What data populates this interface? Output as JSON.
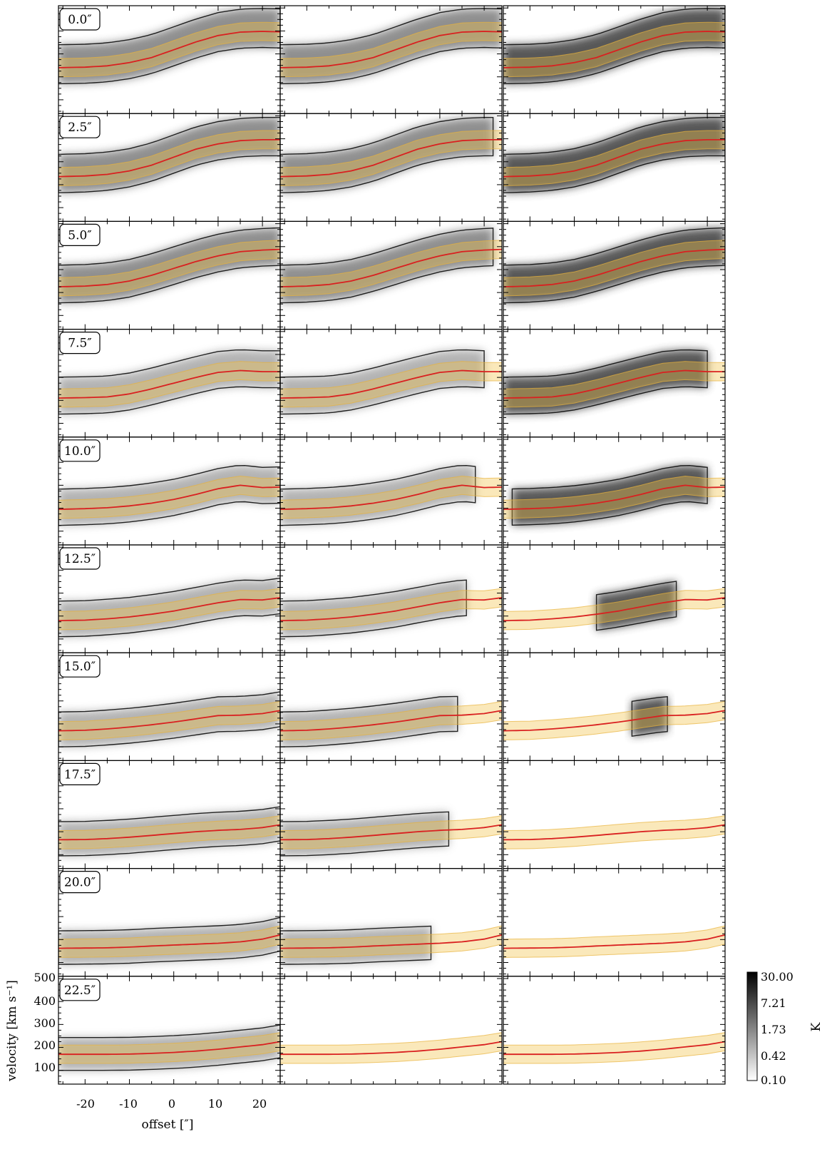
{
  "chart_data": {
    "type": "heatmap",
    "title": "",
    "xlabel": "offset [″]",
    "ylabel": "velocity [km s⁻¹]",
    "xlim": [
      -26,
      24
    ],
    "ylim": [
      40,
      510
    ],
    "x_ticks": [
      -20,
      -10,
      0,
      10,
      20
    ],
    "y_ticks": [
      100,
      200,
      300,
      400,
      500
    ],
    "grid": false,
    "colormap": "gray_r",
    "colorbar": {
      "label": "K",
      "scale": "log",
      "ticks": [
        "30.00",
        "7.21",
        "1.73",
        "0.42",
        "0.10"
      ],
      "range": [
        0.1,
        30.0
      ]
    },
    "rows": 10,
    "columns": 3,
    "offsets": [
      "0.0″",
      "2.5″",
      "5.0″",
      "7.5″",
      "10.0″",
      "12.5″",
      "15.0″",
      "17.5″",
      "20.0″",
      "22.5″"
    ],
    "model_curves": [
      {
        "x": [
          -26,
          -20,
          -15,
          -10,
          -5,
          0,
          5,
          10,
          15,
          20,
          24
        ],
        "y": [
          240,
          242,
          248,
          262,
          284,
          318,
          352,
          380,
          395,
          398,
          396
        ]
      },
      {
        "x": [
          -26,
          -20,
          -15,
          -10,
          -5,
          0,
          5,
          10,
          15,
          20,
          24
        ],
        "y": [
          235,
          238,
          245,
          260,
          285,
          320,
          355,
          378,
          392,
          396,
          396
        ]
      },
      {
        "x": [
          -26,
          -20,
          -15,
          -10,
          -5,
          0,
          5,
          10,
          15,
          20,
          24
        ],
        "y": [
          225,
          228,
          235,
          250,
          275,
          305,
          335,
          360,
          378,
          385,
          388
        ]
      },
      {
        "x": [
          -26,
          -20,
          -15,
          -10,
          -5,
          0,
          5,
          10,
          15,
          20,
          24
        ],
        "y": [
          210,
          212,
          215,
          228,
          250,
          275,
          300,
          322,
          330,
          325,
          325
        ]
      },
      {
        "x": [
          -26,
          -20,
          -15,
          -10,
          -5,
          0,
          5,
          10,
          15,
          20,
          24
        ],
        "y": [
          195,
          198,
          202,
          210,
          222,
          238,
          260,
          285,
          300,
          290,
          292
        ]
      },
      {
        "x": [
          -26,
          -20,
          -15,
          -10,
          -5,
          0,
          5,
          10,
          15,
          20,
          24
        ],
        "y": [
          180,
          182,
          188,
          196,
          208,
          222,
          240,
          258,
          272,
          270,
          280
        ]
      },
      {
        "x": [
          -26,
          -20,
          -15,
          -10,
          -5,
          0,
          5,
          10,
          15,
          20,
          24
        ],
        "y": [
          170,
          172,
          178,
          186,
          196,
          208,
          222,
          236,
          238,
          245,
          258
        ]
      },
      {
        "x": [
          -26,
          -20,
          -15,
          -10,
          -5,
          0,
          5,
          10,
          15,
          20,
          24
        ],
        "y": [
          165,
          166,
          170,
          176,
          184,
          192,
          200,
          206,
          210,
          218,
          230
        ]
      },
      {
        "x": [
          -26,
          -20,
          -15,
          -10,
          -5,
          0,
          5,
          10,
          15,
          20,
          24
        ],
        "y": [
          162,
          163,
          164,
          167,
          172,
          176,
          180,
          184,
          190,
          202,
          220
        ]
      },
      {
        "x": [
          -26,
          -20,
          -15,
          -10,
          -5,
          0,
          5,
          10,
          15,
          20,
          24
        ],
        "y": [
          170,
          170,
          170,
          171,
          174,
          178,
          184,
          192,
          202,
          212,
          225
        ]
      }
    ],
    "model_band_halfwidth": 40,
    "observed_extent_x": [
      [
        [
          -26,
          24
        ],
        [
          -26,
          24
        ],
        [
          -26,
          24
        ]
      ],
      [
        [
          -26,
          24
        ],
        [
          -26,
          22
        ],
        [
          -26,
          24
        ]
      ],
      [
        [
          -26,
          24
        ],
        [
          -26,
          22
        ],
        [
          -26,
          24
        ]
      ],
      [
        [
          -26,
          24
        ],
        [
          -26,
          20
        ],
        [
          -26,
          20
        ]
      ],
      [
        [
          -26,
          24
        ],
        [
          -26,
          18
        ],
        [
          -24,
          20
        ]
      ],
      [
        [
          -26,
          24
        ],
        [
          -26,
          16
        ],
        [
          -5,
          14
        ]
      ],
      [
        [
          -26,
          24
        ],
        [
          -26,
          14
        ],
        [
          3,
          12
        ]
      ],
      [
        [
          -26,
          24
        ],
        [
          -26,
          12
        ],
        [
          24,
          24
        ]
      ],
      [
        [
          -26,
          24
        ],
        [
          -26,
          8
        ],
        [
          24,
          24
        ]
      ],
      [
        [
          -26,
          24
        ],
        [
          24,
          24
        ],
        [
          24,
          24
        ]
      ]
    ]
  }
}
